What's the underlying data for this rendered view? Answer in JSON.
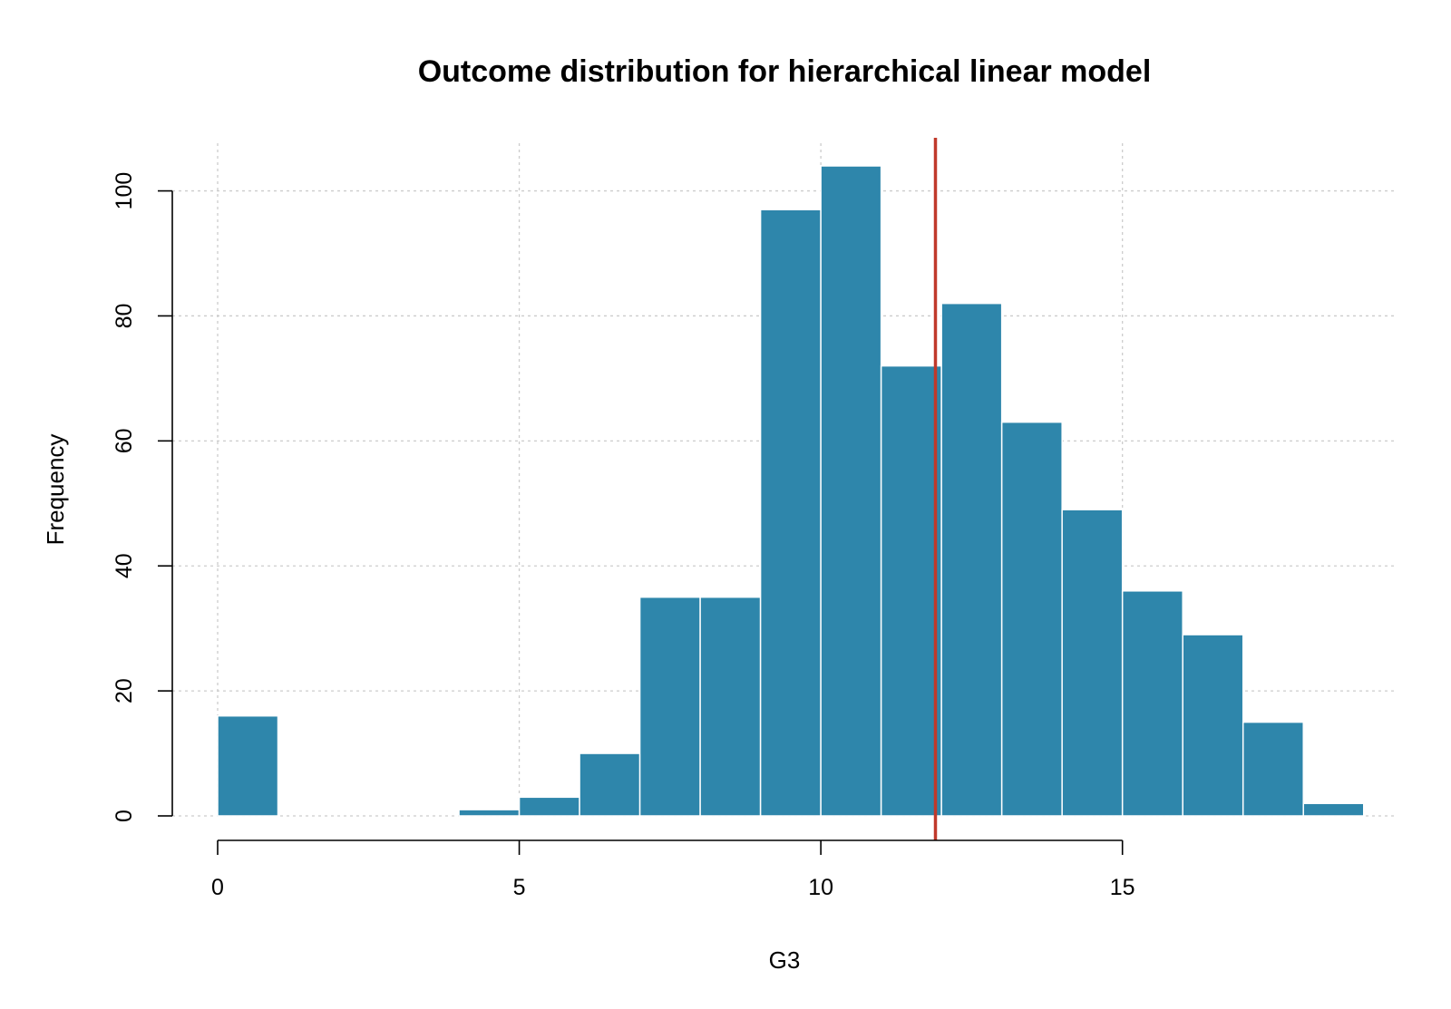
{
  "chart_data": {
    "type": "bar",
    "title": "Outcome distribution for hierarchical linear model",
    "xlabel": "G3",
    "ylabel": "Frequency",
    "bins": [
      {
        "start": 0,
        "end": 1,
        "count": 16
      },
      {
        "start": 1,
        "end": 2,
        "count": 0
      },
      {
        "start": 2,
        "end": 3,
        "count": 0
      },
      {
        "start": 3,
        "end": 4,
        "count": 0
      },
      {
        "start": 4,
        "end": 5,
        "count": 1
      },
      {
        "start": 5,
        "end": 6,
        "count": 3
      },
      {
        "start": 6,
        "end": 7,
        "count": 10
      },
      {
        "start": 7,
        "end": 8,
        "count": 35
      },
      {
        "start": 8,
        "end": 9,
        "count": 35
      },
      {
        "start": 9,
        "end": 10,
        "count": 97
      },
      {
        "start": 10,
        "end": 11,
        "count": 104
      },
      {
        "start": 11,
        "end": 12,
        "count": 72
      },
      {
        "start": 12,
        "end": 13,
        "count": 82
      },
      {
        "start": 13,
        "end": 14,
        "count": 63
      },
      {
        "start": 14,
        "end": 15,
        "count": 49
      },
      {
        "start": 15,
        "end": 16,
        "count": 36
      },
      {
        "start": 16,
        "end": 17,
        "count": 29
      },
      {
        "start": 17,
        "end": 18,
        "count": 15
      },
      {
        "start": 18,
        "end": 19,
        "count": 2
      }
    ],
    "reference_line": {
      "x": 11.9,
      "color": "#c0392b"
    },
    "bar_color": "#2e86ab",
    "bar_border_color": "#ffffff",
    "grid": true,
    "grid_color": "#cccccc",
    "xlim": [
      0,
      19.5
    ],
    "ylim": [
      0,
      104
    ],
    "xticks": [
      0,
      5,
      10,
      15
    ],
    "yticks": [
      0,
      20,
      40,
      60,
      80,
      100
    ]
  }
}
